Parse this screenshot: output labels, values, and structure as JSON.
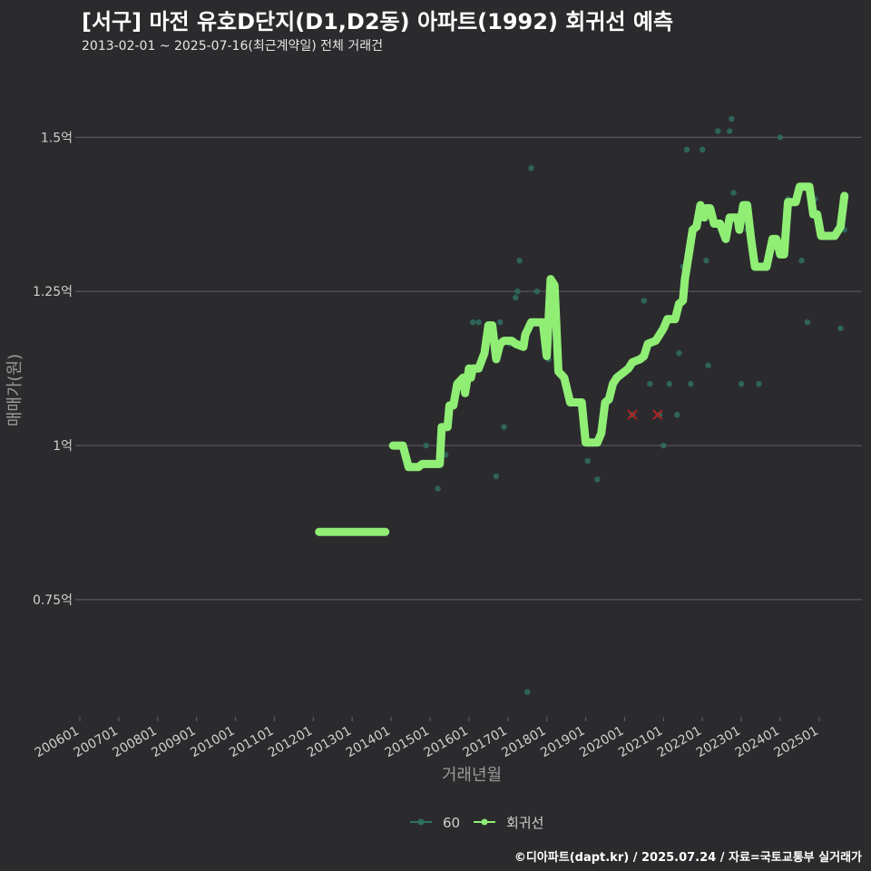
{
  "header": {
    "title": "[서구] 마전 유호D단지(D1,D2동) 아파트(1992) 회귀선 예측",
    "subtitle": "2013-02-01 ~ 2025-07-16(최근계약일) 전체 거래건"
  },
  "source": "©디아파트(dapt.kr) / 2025.07.24 / 자료=국토교통부 실거래가",
  "colors": {
    "background": "#2b2b2e",
    "grid": "#5a5a5e",
    "line": "#90ee75",
    "points": "#2f6f62",
    "outlier": "#b22222",
    "text": "#cfcfcf"
  },
  "chart_data": {
    "type": "line",
    "xlabel": "거래년월",
    "ylabel": "매매가(원)",
    "x_ticks": [
      "200601",
      "200701",
      "200801",
      "200901",
      "201001",
      "201101",
      "201201",
      "201301",
      "201401",
      "201501",
      "201601",
      "201701",
      "201801",
      "201901",
      "202001",
      "202101",
      "202201",
      "202301",
      "202401",
      "202501"
    ],
    "x_range": [
      2006.0,
      2026.1
    ],
    "y_ticks": [
      0.75,
      1.0,
      1.25,
      1.5
    ],
    "y_tick_labels": [
      "0.75억",
      "1억",
      "1.25억",
      "1.5억"
    ],
    "ylim": [
      0.56,
      1.605
    ],
    "legend": [
      {
        "name": "60",
        "color": "#2f6f62"
      },
      {
        "name": "회귀선",
        "color": "#90ee75"
      }
    ],
    "series": [
      {
        "name": "회귀선",
        "segments": [
          [
            [
              2012.15,
              0.86
            ],
            [
              2013.85,
              0.86
            ]
          ],
          [
            [
              2014.05,
              1.0
            ],
            [
              2014.3,
              1.0
            ],
            [
              2014.45,
              0.965
            ],
            [
              2014.7,
              0.965
            ],
            [
              2014.8,
              0.97
            ],
            [
              2015.1,
              0.97
            ],
            [
              2015.25,
              0.97
            ],
            [
              2015.3,
              1.03
            ],
            [
              2015.45,
              1.03
            ],
            [
              2015.5,
              1.065
            ],
            [
              2015.6,
              1.065
            ],
            [
              2015.7,
              1.1
            ],
            [
              2015.85,
              1.11
            ],
            [
              2015.9,
              1.085
            ],
            [
              2016.0,
              1.125
            ],
            [
              2016.05,
              1.11
            ],
            [
              2016.1,
              1.125
            ],
            [
              2016.25,
              1.125
            ],
            [
              2016.4,
              1.15
            ],
            [
              2016.5,
              1.195
            ],
            [
              2016.6,
              1.195
            ],
            [
              2016.7,
              1.14
            ],
            [
              2016.8,
              1.165
            ],
            [
              2016.9,
              1.17
            ],
            [
              2017.1,
              1.17
            ],
            [
              2017.2,
              1.165
            ],
            [
              2017.4,
              1.16
            ],
            [
              2017.45,
              1.18
            ],
            [
              2017.6,
              1.2
            ],
            [
              2017.9,
              1.2
            ],
            [
              2018.0,
              1.145
            ],
            [
              2018.1,
              1.27
            ],
            [
              2018.2,
              1.26
            ],
            [
              2018.3,
              1.12
            ],
            [
              2018.45,
              1.11
            ],
            [
              2018.6,
              1.07
            ],
            [
              2018.9,
              1.07
            ],
            [
              2019.0,
              1.005
            ],
            [
              2019.3,
              1.005
            ],
            [
              2019.4,
              1.02
            ],
            [
              2019.5,
              1.07
            ],
            [
              2019.6,
              1.075
            ],
            [
              2019.7,
              1.1
            ],
            [
              2019.8,
              1.11
            ],
            [
              2020.1,
              1.125
            ],
            [
              2020.2,
              1.135
            ],
            [
              2020.4,
              1.14
            ],
            [
              2020.5,
              1.145
            ],
            [
              2020.6,
              1.165
            ],
            [
              2020.8,
              1.17
            ],
            [
              2020.9,
              1.18
            ],
            [
              2021.0,
              1.19
            ],
            [
              2021.1,
              1.205
            ],
            [
              2021.3,
              1.205
            ],
            [
              2021.4,
              1.23
            ],
            [
              2021.5,
              1.235
            ],
            [
              2021.55,
              1.27
            ],
            [
              2021.65,
              1.31
            ],
            [
              2021.75,
              1.35
            ],
            [
              2021.85,
              1.355
            ],
            [
              2021.95,
              1.39
            ],
            [
              2022.05,
              1.37
            ],
            [
              2022.1,
              1.385
            ],
            [
              2022.2,
              1.385
            ],
            [
              2022.3,
              1.36
            ],
            [
              2022.45,
              1.36
            ],
            [
              2022.6,
              1.335
            ],
            [
              2022.7,
              1.37
            ],
            [
              2022.9,
              1.37
            ],
            [
              2022.95,
              1.35
            ],
            [
              2023.05,
              1.39
            ],
            [
              2023.15,
              1.39
            ],
            [
              2023.25,
              1.335
            ],
            [
              2023.35,
              1.29
            ],
            [
              2023.65,
              1.29
            ],
            [
              2023.8,
              1.335
            ],
            [
              2023.9,
              1.335
            ],
            [
              2024.0,
              1.31
            ],
            [
              2024.1,
              1.31
            ],
            [
              2024.2,
              1.395
            ],
            [
              2024.4,
              1.395
            ],
            [
              2024.5,
              1.42
            ],
            [
              2024.75,
              1.42
            ],
            [
              2024.85,
              1.375
            ],
            [
              2024.95,
              1.375
            ],
            [
              2025.05,
              1.34
            ],
            [
              2025.4,
              1.34
            ],
            [
              2025.55,
              1.355
            ],
            [
              2025.65,
              1.405
            ]
          ]
        ]
      }
    ],
    "points": [
      [
        2014.9,
        1.0
      ],
      [
        2015.2,
        0.93
      ],
      [
        2015.4,
        0.985
      ],
      [
        2016.1,
        1.2
      ],
      [
        2016.25,
        1.2
      ],
      [
        2016.7,
        0.95
      ],
      [
        2016.8,
        1.2
      ],
      [
        2016.9,
        1.03
      ],
      [
        2017.05,
        1.165
      ],
      [
        2017.2,
        1.24
      ],
      [
        2017.25,
        1.25
      ],
      [
        2017.3,
        1.3
      ],
      [
        2017.5,
        0.6
      ],
      [
        2017.6,
        1.45
      ],
      [
        2017.75,
        1.25
      ],
      [
        2018.05,
        1.14
      ],
      [
        2019.05,
        0.975
      ],
      [
        2019.3,
        0.945
      ],
      [
        2020.2,
        1.05
      ],
      [
        2020.5,
        1.235
      ],
      [
        2020.65,
        1.1
      ],
      [
        2020.9,
        1.05
      ],
      [
        2021.0,
        1.0
      ],
      [
        2021.15,
        1.1
      ],
      [
        2021.35,
        1.05
      ],
      [
        2021.4,
        1.15
      ],
      [
        2021.5,
        1.29
      ],
      [
        2021.6,
        1.48
      ],
      [
        2021.7,
        1.1
      ],
      [
        2022.0,
        1.48
      ],
      [
        2022.1,
        1.3
      ],
      [
        2022.15,
        1.13
      ],
      [
        2022.4,
        1.51
      ],
      [
        2022.7,
        1.51
      ],
      [
        2022.75,
        1.53
      ],
      [
        2022.8,
        1.41
      ],
      [
        2023.0,
        1.1
      ],
      [
        2023.15,
        1.35
      ],
      [
        2023.45,
        1.1
      ],
      [
        2024.0,
        1.5
      ],
      [
        2024.2,
        1.4
      ],
      [
        2024.55,
        1.3
      ],
      [
        2024.7,
        1.2
      ],
      [
        2024.9,
        1.4
      ],
      [
        2025.55,
        1.19
      ],
      [
        2025.65,
        1.35
      ]
    ],
    "outliers": [
      [
        2020.2,
        1.05
      ],
      [
        2020.85,
        1.05
      ]
    ]
  }
}
